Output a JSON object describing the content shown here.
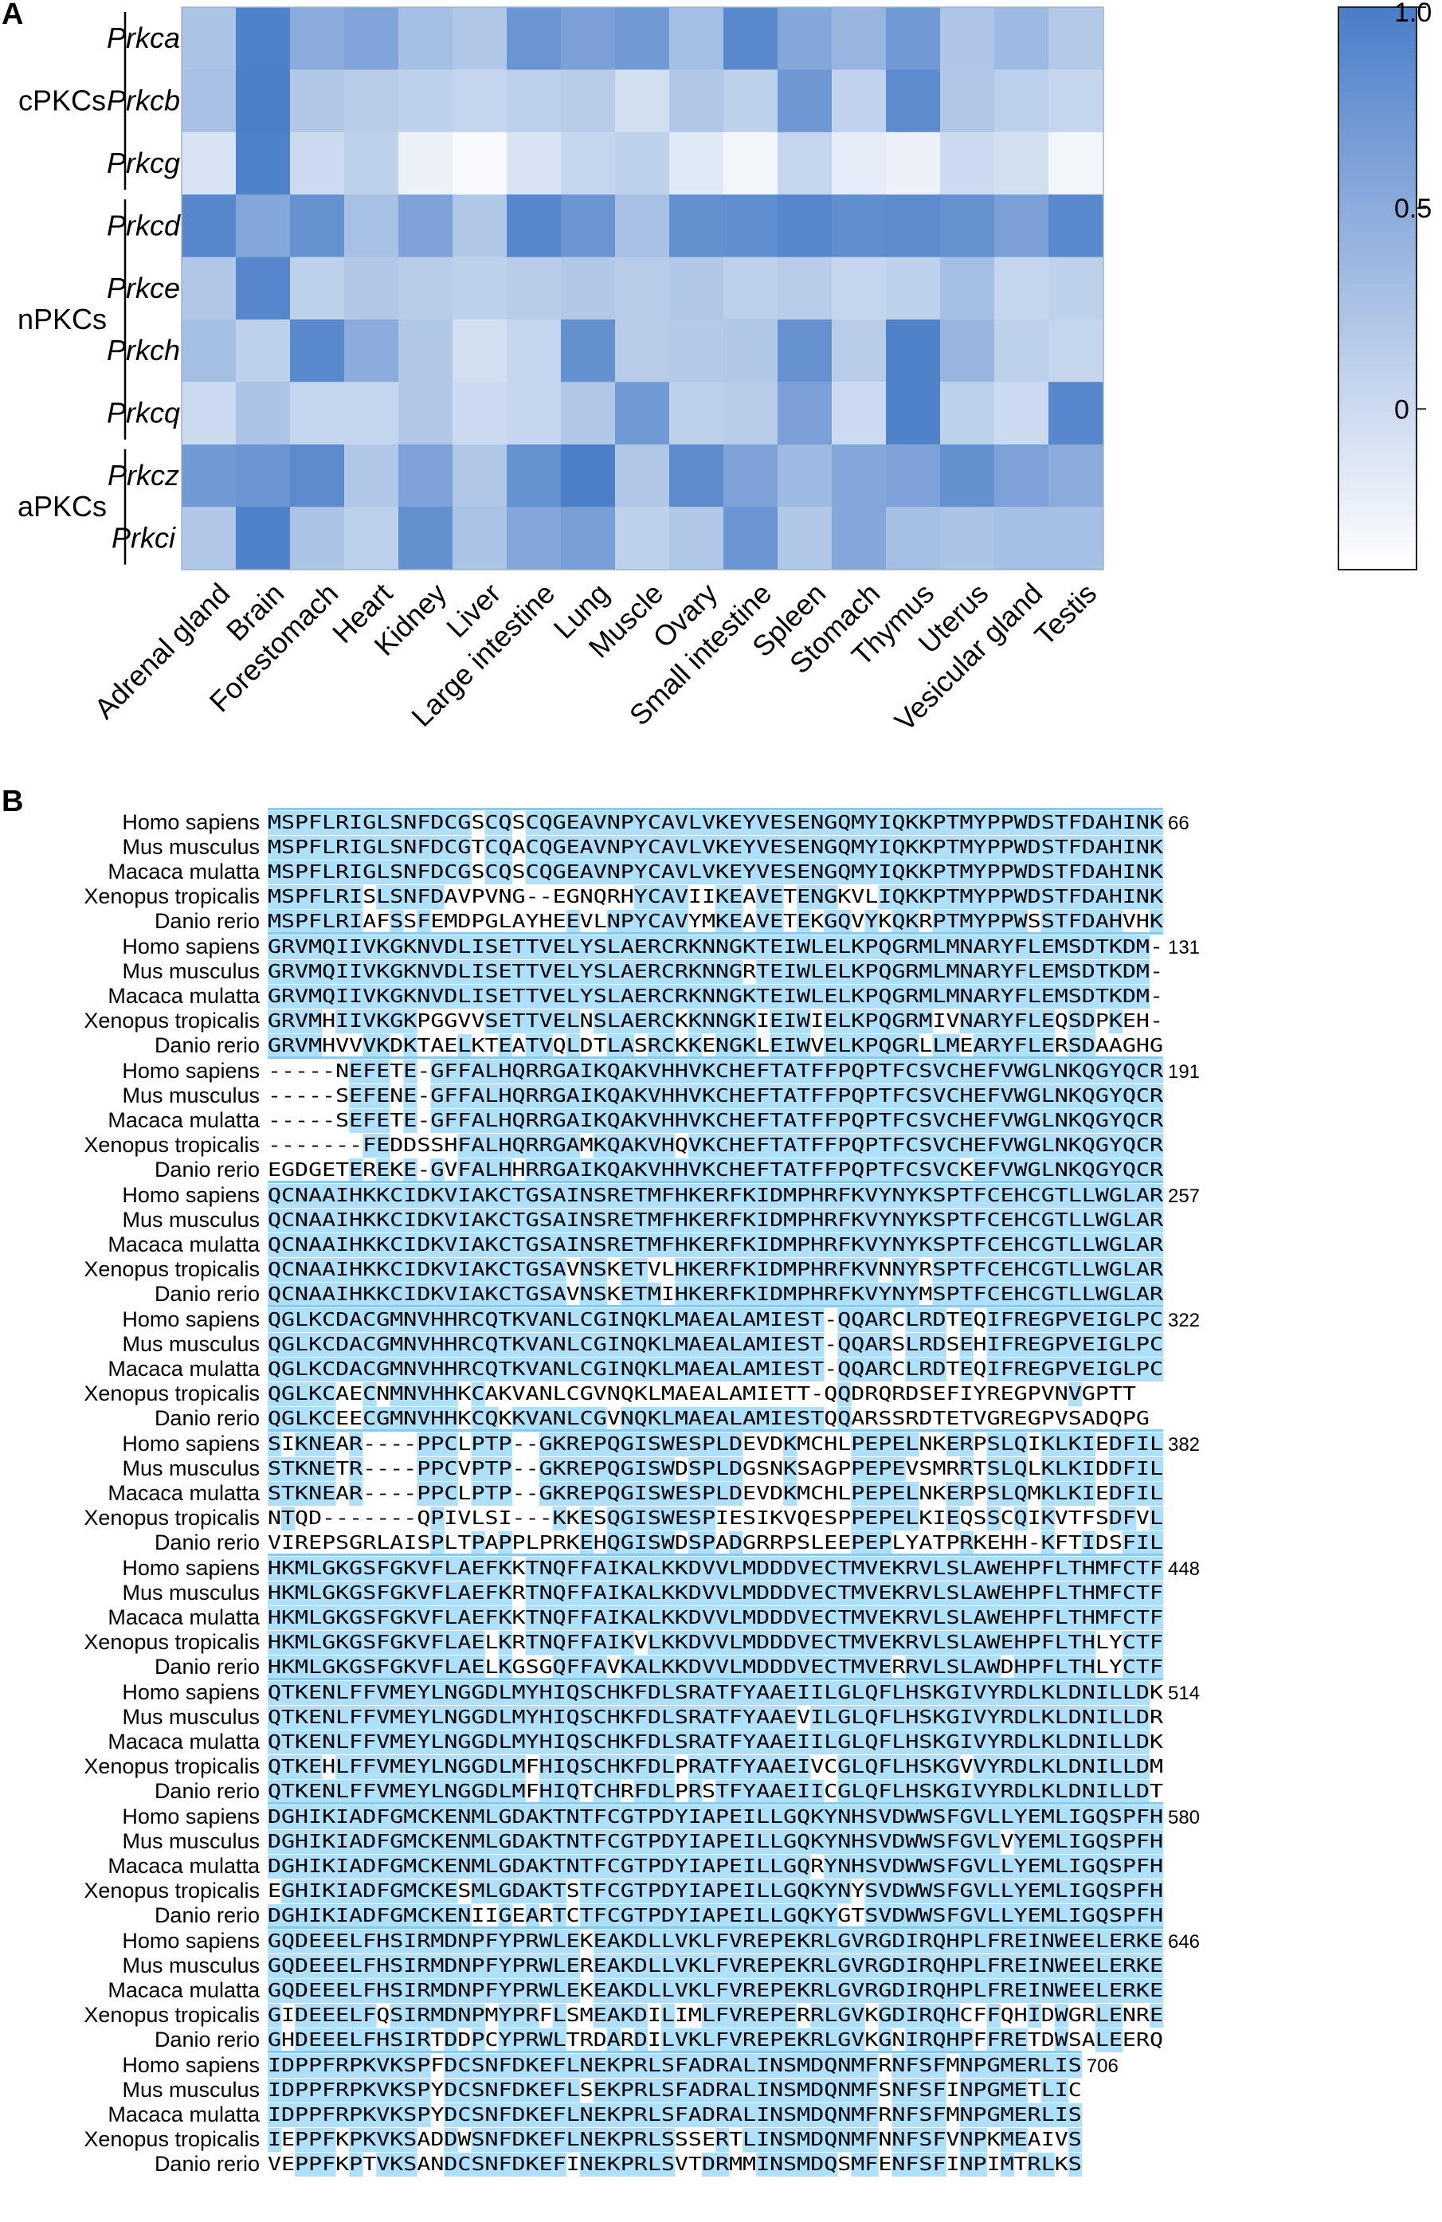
{
  "panels": {
    "a": "A",
    "b": "B"
  },
  "colors": {
    "low": "#ffffff",
    "high": "#4a7dc8",
    "aln_identity": "#aee0fb",
    "aln_band": "#8dc9ec"
  },
  "chart_data": [
    {
      "type": "heatmap",
      "panel": "A",
      "rows": [
        "Prkca",
        "Prkcb",
        "Prkcg",
        "Prkcd",
        "Prkce",
        "Prkch",
        "Prkcq",
        "Prkcz",
        "Prkci"
      ],
      "row_groups": [
        {
          "name": "cPKCs",
          "rows": [
            "Prkca",
            "Prkcb",
            "Prkcg"
          ]
        },
        {
          "name": "nPKCs",
          "rows": [
            "Prkcd",
            "Prkce",
            "Prkch",
            "Prkcq"
          ]
        },
        {
          "name": "aPKCs",
          "rows": [
            "Prkcz",
            "Prkci"
          ]
        }
      ],
      "columns": [
        "Adrenal gland",
        "Brain",
        "Forestomach",
        "Heart",
        "Kidney",
        "Liver",
        "Large intestine",
        "Lung",
        "Muscle",
        "Ovary",
        "Small intestine",
        "Spleen",
        "Stomach",
        "Thymus",
        "Uterus",
        "Vesicular gland",
        "Testis"
      ],
      "values": [
        [
          0.25,
          0.95,
          0.5,
          0.58,
          0.3,
          0.2,
          0.75,
          0.62,
          0.7,
          0.3,
          0.88,
          0.55,
          0.4,
          0.7,
          0.22,
          0.35,
          0.18
        ],
        [
          0.28,
          0.98,
          0.2,
          0.15,
          0.1,
          0.05,
          0.12,
          0.15,
          -0.05,
          0.2,
          0.1,
          0.72,
          0.08,
          0.85,
          0.2,
          0.12,
          0.05
        ],
        [
          -0.1,
          0.95,
          0.0,
          0.1,
          -0.25,
          -0.35,
          -0.1,
          0.05,
          0.1,
          -0.15,
          -0.3,
          0.05,
          -0.2,
          -0.25,
          0.0,
          -0.05,
          -0.3
        ],
        [
          0.9,
          0.55,
          0.78,
          0.28,
          0.6,
          0.2,
          0.9,
          0.75,
          0.28,
          0.8,
          0.82,
          0.9,
          0.82,
          0.85,
          0.78,
          0.62,
          0.88
        ],
        [
          0.2,
          0.9,
          0.1,
          0.2,
          0.15,
          0.1,
          0.15,
          0.2,
          0.15,
          0.2,
          0.12,
          0.15,
          0.05,
          0.1,
          0.3,
          0.05,
          0.1
        ],
        [
          0.3,
          0.1,
          0.88,
          0.5,
          0.2,
          -0.05,
          0.05,
          0.8,
          0.15,
          0.18,
          0.2,
          0.78,
          0.15,
          0.95,
          0.4,
          0.1,
          0.05
        ],
        [
          0.0,
          0.25,
          0.05,
          0.05,
          0.2,
          0.0,
          0.05,
          0.2,
          0.7,
          0.1,
          0.15,
          0.62,
          0.0,
          0.95,
          0.1,
          0.0,
          0.9
        ],
        [
          0.7,
          0.75,
          0.85,
          0.2,
          0.6,
          0.2,
          0.78,
          0.98,
          0.2,
          0.85,
          0.6,
          0.35,
          0.55,
          0.6,
          0.8,
          0.6,
          0.5
        ],
        [
          0.2,
          0.95,
          0.25,
          0.12,
          0.8,
          0.25,
          0.55,
          0.65,
          0.1,
          0.2,
          0.75,
          0.2,
          0.55,
          0.3,
          0.25,
          0.3,
          0.3
        ]
      ],
      "colorbar": {
        "ticks": [
          1.0,
          0.5,
          0
        ],
        "tick_labels": [
          "1.0",
          "0.5",
          "0"
        ],
        "range": [
          -0.4,
          1.0
        ]
      },
      "xlabel": "",
      "ylabel": ""
    },
    {
      "type": "table",
      "panel": "B",
      "species": [
        "Homo sapiens",
        "Mus musculus",
        "Macaca mulatta",
        "Xenopus tropicalis",
        "Danio rerio"
      ],
      "blocks": [
        {
          "end": "66",
          "seqs": [
            "MSPFLRIGLSNFDCGSCQSCQGEAVNPYCAVLVKEYVESENGQMYIQKKPTMYPPWDSTFDAHINK",
            "MSPFLRIGLSNFDCGTCQACQGEAVNPYCAVLVKEYVESENGQMYIQKKPTMYPPWDSTFDAHINK",
            "MSPFLRIGLSNFDCGSCQSCQGEAVNPYCAVLVKEYVESENGQMYIQKKPTMYPPWDSTFDAHINK",
            "MSPFLRISLSNFDAVPVNG--EGNQRHYCAVIIKEAVETENGKVLIQKKPTMYPPWDSTFDAHINK",
            "MSPFLRIAFSSFEMDPGLAYHEEVLNPYCAVYMKEAVETEKGQVYKQKRPTMYPPWSSTFDAHVHK"
          ]
        },
        {
          "end": "131",
          "seqs": [
            "GRVMQIIVKGKNVDLISETTVELYSLAERCRKNNGKTEIWLELKPQGRMLMNARYFLEMSDTKDM-",
            "GRVMQIIVKGKNVDLISETTVELYSLAERCRKNNGRTEIWLELKPQGRMLMNARYFLEMSDTKDM-",
            "GRVMQIIVKGKNVDLISETTVELYSLAERCRKNNGKTEIWLELKPQGRMLMNARYFLEMSDTKDM-",
            "GRVMHIIVKGKPGGVVSETTVELNSLAERCKKNNGKIEIWIELKPQGRMIVNARYFLEQSDPKEH-",
            "GRVMHVVVKDKTAELKTEATVQLDTLASRCKKENGKLEIWVELKPQGRLLMEARYFLERSDAAGHG"
          ]
        },
        {
          "end": "191",
          "seqs": [
            "-----NEFETE-GFFALHQRRGAIKQAKVHHVKCHEFTATFFPQPTFCSVCHEFVWGLNKQGYQCR",
            "-----SEFENE-GFFALHQRRGAIKQAKVHHVKCHEFTATFFPQPTFCSVCHEFVWGLNKQGYQCR",
            "-----SEFETE-GFFALHQRRGAIKQAKVHHVKCHEFTATFFPQPTFCSVCHEFVWGLNKQGYQCR",
            "-------FEDDSSHFALHQRRGAMKQAKVHQVKCHEFTATFFPQPTFCSVCHEFVWGLNKQGYQCR",
            "EGDGETEREKE-GVFALHHRRGAIKQAKVHHVKCHEFTATFFPQPTFCSVCKEFVWGLNKQGYQCR"
          ]
        },
        {
          "end": "257",
          "seqs": [
            "QCNAAIHKKCIDKVIAKCTGSAINSRETMFHKERFKIDMPHRFKVYNYKSPTFCEHCGTLLWGLAR",
            "QCNAAIHKKCIDKVIAKCTGSAINSRETMFHKERFKIDMPHRFKVYNYKSPTFCEHCGTLLWGLAR",
            "QCNAAIHKKCIDKVIAKCTGSAINSRETMFHKERFKIDMPHRFKVYNYKSPTFCEHCGTLLWGLAR",
            "QCNAAIHKKCIDKVIAKCTGSAVNSKETVLHKERFKIDMPHRFKVNNYRSPTFCEHCGTLLWGLAR",
            "QCNAAIHKKCIDKVIAKCTGSAVNSKETMIHKERFKIDMPHRFKVYNYMSPTFCEHCGTLLWGLAR"
          ]
        },
        {
          "end": "322",
          "seqs": [
            "QGLKCDACGMNVHHRCQTKVANLCGINQKLMAEALAMIEST-QQARCLRDTEQIFREGPVEIGLPC",
            "QGLKCDACGMNVHHRCQTKVANLCGINQKLMAEALAMIEST-QQARSLRDSEHIFREGPVEIGLPC",
            "QGLKCDACGMNVHHRCQTKVANLCGINQKLMAEALAMIEST-QQARCLRDTEQIFREGPVEIGLPC",
            "QGLKCAECNMNVHHKCAKVANLCGVNQKLMAEALAMIETT-QQDRQRDSEFIYREGPVNVGPTT",
            "QGLKCEECGMNVHHKCQKKVANLCGVNQKLMAEALAMIESTQQARSSRDTETVGREGPVSADQPG"
          ]
        },
        {
          "end": "382",
          "seqs": [
            "SIKNEAR----PPCLPTP--GKREPQGISWESPLDEVDKMCHLPEPELNKERPSLQIKLKIEDFIL",
            "STKNETR----PPCVPTP--GKREPQGISWDSPLDGSNKSAGPPEPEVSMRRTSLQLKLKIDDFIL",
            "STKNEAR----PPCLPTP--GKREPQGISWESPLDEVDKMCHLPEPELNKERPSLQMKLKIEDFIL",
            "NTQD-------QPIVLSI---KKESQGISWESPIESIKVQESPPEPELKIEQSSCQIKVTFSDFVL",
            "VIREPSGRLAISPLTPAPPLPRKEHQGISWDSPADGRRPSLEEPEPLYATPRKEHH-KFTIDSFIL"
          ]
        },
        {
          "end": "448",
          "seqs": [
            "HKMLGKGSFGKVFLAEFKKTNQFFAIKALKKDVVLMDDDVECTMVEKRVLSLAWEHPFLTHMFCTF",
            "HKMLGKGSFGKVFLAEFKRTNQFFAIKALKKDVVLMDDDVECTMVEKRVLSLAWEHPFLTHMFCTF",
            "HKMLGKGSFGKVFLAEFKKTNQFFAIKALKKDVVLMDDDVECTMVEKRVLSLAWEHPFLTHMFCTF",
            "HKMLGKGSFGKVFLAELKRTNQFFAIKVLKKDVVLMDDDVECTMVEKRVLSLAWEHPFLTHLYCTF",
            "HKMLGKGSFGKVFLAELKGSGQFFAVKALKKDVVLMDDDVECTMVERRVLSLAWDHPFLTHLYCTF"
          ]
        },
        {
          "end": "514",
          "seqs": [
            "QTKENLFFVMEYLNGGDLMYHIQSCHKFDLSRATFYAAEIILGLQFLHSKGIVYRDLKLDNILLDK",
            "QTKENLFFVMEYLNGGDLMYHIQSCHKFDLSRATFYAAEVILGLQFLHSKGIVYRDLKLDNILLDR",
            "QTKENLFFVMEYLNGGDLMYHIQSCHKFDLSRATFYAAEIILGLQFLHSKGIVYRDLKLDNILLDK",
            "QTKEHLFFVMEYLNGGDLMFHIQSCHKFDLPRATFYAAEIVCGLQFLHSKGVVYRDLKLDNILLDM",
            "QTKENLFFVMEYLNGGDLMFHIQTCHRFDLPRSTFYAAEIICGLQFLHSKGIVYRDLKLDNILLDT"
          ]
        },
        {
          "end": "580",
          "seqs": [
            "DGHIKIADFGMCKENMLGDAKTNTFCGTPDYIAPEILLGQKYNHSVDWWSFGVLLYEMLIGQSPFH",
            "DGHIKIADFGMCKENMLGDAKTNTFCGTPDYIAPEILLGQKYNHSVDWWSFGVLVYEMLIGQSPFH",
            "DGHIKIADFGMCKENMLGDAKTNTFCGTPDYIAPEILLGQRYNHSVDWWSFGVLLYEMLIGQSPFH",
            "EGHIKIADFGMCKESMLGDAKTSTFCGTPDYIAPEILLGQKYNYSVDWWSFGVLLYEMLIGQSPFH",
            "DGHIKIADFGMCKENIIGEARTCTFCGTPDYIAPEILLGQKYGTSVDWWSFGVLLYEMLIGQSPFH"
          ]
        },
        {
          "end": "646",
          "seqs": [
            "GQDEEELFHSIRMDNPFYPRWLEKEAKDLLVKLFVREPEKRLGVRGDIRQHPLFREINWEELERKE",
            "GQDEEELFHSIRMDNPFYPRWLEREAKDLLVKLFVREPEKRLGVRGDIRQHPLFREINWEELERKE",
            "GQDEEELFHSIRMDNPFYPRWLEKEAKDLLVKLFVREPEKRLGVRGDIRQHPLFREINWEELERKE",
            "GIDEEELFQSIRMDNPMYPRFLSMEAKDILIMLFVREPERRLGVKGDIRQHCFFQHIDWGRLENRE",
            "GHDEEELFHSIRTDDPCYPRWLTRDARDILVKLFVREPEKRLGVKGNIRQHPFFRETDWSALEERQ"
          ]
        },
        {
          "end": "706",
          "seqs": [
            "IDPPFRPKVKSPFDCSNFDKEFLNEKPRLSFADRALINSMDQNMFRNFSFMNPGMERLIS",
            "IDPPFRPKVKSPYDCSNFDKEFLSEKPRLSFADRALINSMDQNMFSNFSFINPGMETLIC",
            "IDPPFRPKVKSPYDCSNFDKEFLNEKPRLSFADRALINSMDQNMFRNFSFMNPGMERLIS",
            "IEPPFKPKVKSADDWSNFDKEFLNEKPRLSSSERTLINSMDQNMFNNFSFVNPKMEAIVS",
            "VEPPFKPTVKSANDCSNFDKEFINEKPRLSVTDRMMINSMDQSMFENFSFINPIMTRLKS"
          ]
        }
      ]
    }
  ]
}
